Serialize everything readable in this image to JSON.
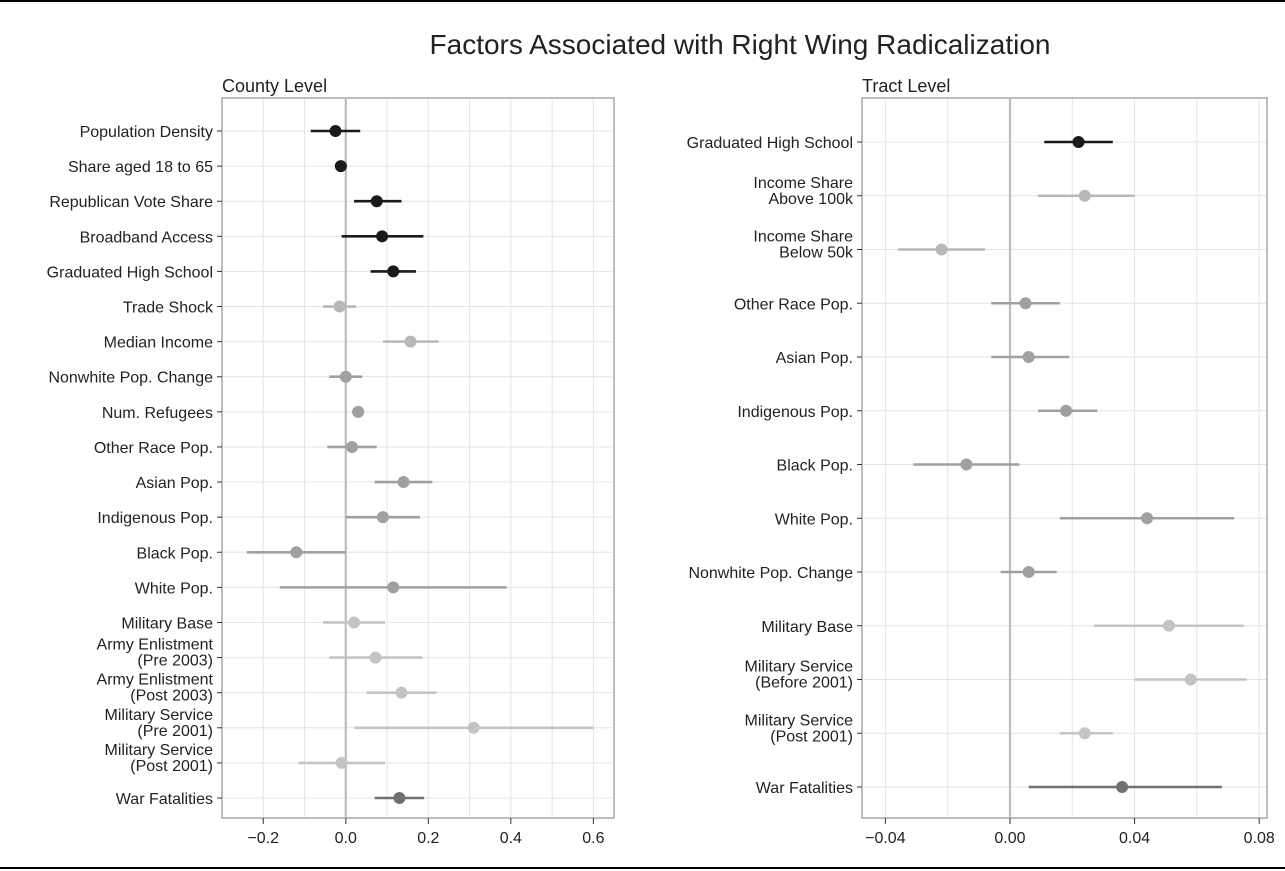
{
  "figure": {
    "title": "Factors Associated with Right Wing Radicalization"
  },
  "chart_data": [
    {
      "type": "scatter",
      "subtitle": "County Level",
      "xlim": [
        -0.3,
        0.65
      ],
      "xticks": [
        -0.2,
        0.0,
        0.2,
        0.4,
        0.6
      ],
      "tick_labels": [
        "−0.2",
        "0.0",
        "0.2",
        "0.4",
        "0.6"
      ],
      "zero_line": 0,
      "grid": true,
      "points": [
        {
          "label": [
            "Population Density"
          ],
          "est": -0.025,
          "lo": -0.085,
          "hi": 0.035,
          "color": "#1a1a1a"
        },
        {
          "label": [
            "Share aged 18 to 65"
          ],
          "est": -0.012,
          "lo": -0.022,
          "hi": -0.003,
          "color": "#1a1a1a"
        },
        {
          "label": [
            "Republican Vote Share"
          ],
          "est": 0.075,
          "lo": 0.02,
          "hi": 0.135,
          "color": "#1a1a1a"
        },
        {
          "label": [
            "Broadband Access"
          ],
          "est": 0.088,
          "lo": -0.01,
          "hi": 0.188,
          "color": "#1a1a1a"
        },
        {
          "label": [
            "Graduated High School"
          ],
          "est": 0.115,
          "lo": 0.06,
          "hi": 0.17,
          "color": "#1a1a1a"
        },
        {
          "label": [
            "Trade Shock"
          ],
          "est": -0.015,
          "lo": -0.055,
          "hi": 0.025,
          "color": "#b8b8b8"
        },
        {
          "label": [
            "Median Income"
          ],
          "est": 0.157,
          "lo": 0.09,
          "hi": 0.225,
          "color": "#b8b8b8"
        },
        {
          "label": [
            "Nonwhite Pop. Change"
          ],
          "est": 0.0,
          "lo": -0.04,
          "hi": 0.04,
          "color": "#a0a0a0"
        },
        {
          "label": [
            "Num. Refugees"
          ],
          "est": 0.03,
          "lo": 0.015,
          "hi": 0.045,
          "color": "#a0a0a0"
        },
        {
          "label": [
            "Other Race Pop."
          ],
          "est": 0.015,
          "lo": -0.045,
          "hi": 0.075,
          "color": "#a0a0a0"
        },
        {
          "label": [
            "Asian Pop."
          ],
          "est": 0.14,
          "lo": 0.07,
          "hi": 0.21,
          "color": "#a0a0a0"
        },
        {
          "label": [
            "Indigenous Pop."
          ],
          "est": 0.09,
          "lo": 0.0,
          "hi": 0.18,
          "color": "#a0a0a0"
        },
        {
          "label": [
            "Black Pop."
          ],
          "est": -0.12,
          "lo": -0.24,
          "hi": 0.0,
          "color": "#a0a0a0"
        },
        {
          "label": [
            "White Pop."
          ],
          "est": 0.115,
          "lo": -0.16,
          "hi": 0.39,
          "color": "#a0a0a0"
        },
        {
          "label": [
            "Military Base"
          ],
          "est": 0.02,
          "lo": -0.055,
          "hi": 0.095,
          "color": "#c4c4c4"
        },
        {
          "label": [
            "Army Enlistment",
            "(Pre 2003)"
          ],
          "est": 0.072,
          "lo": -0.04,
          "hi": 0.185,
          "color": "#c4c4c4"
        },
        {
          "label": [
            "Army Enlistment",
            "(Post 2003)"
          ],
          "est": 0.135,
          "lo": 0.05,
          "hi": 0.22,
          "color": "#c4c4c4"
        },
        {
          "label": [
            "Military Service",
            "(Pre 2001)"
          ],
          "est": 0.31,
          "lo": 0.02,
          "hi": 0.6,
          "color": "#c4c4c4"
        },
        {
          "label": [
            "Military Service",
            "(Post 2001)"
          ],
          "est": -0.01,
          "lo": -0.115,
          "hi": 0.095,
          "color": "#c4c4c4"
        },
        {
          "label": [
            "War Fatalities"
          ],
          "est": 0.13,
          "lo": 0.07,
          "hi": 0.19,
          "color": "#707070"
        }
      ]
    },
    {
      "type": "scatter",
      "subtitle": "Tract Level",
      "xlim": [
        -0.0475,
        0.0825
      ],
      "xticks": [
        -0.04,
        0.0,
        0.04,
        0.08
      ],
      "tick_labels": [
        "−0.04",
        "0.00",
        "0.04",
        "0.08"
      ],
      "zero_line": 0,
      "grid": true,
      "points": [
        {
          "label": [
            "Graduated High School"
          ],
          "est": 0.022,
          "lo": 0.011,
          "hi": 0.033,
          "color": "#1a1a1a"
        },
        {
          "label": [
            "Income Share",
            "Above 100k"
          ],
          "est": 0.024,
          "lo": 0.009,
          "hi": 0.04,
          "color": "#b8b8b8"
        },
        {
          "label": [
            "Income Share",
            "Below 50k"
          ],
          "est": -0.022,
          "lo": -0.036,
          "hi": -0.008,
          "color": "#b8b8b8"
        },
        {
          "label": [
            "Other Race Pop."
          ],
          "est": 0.005,
          "lo": -0.006,
          "hi": 0.016,
          "color": "#a0a0a0"
        },
        {
          "label": [
            "Asian Pop."
          ],
          "est": 0.006,
          "lo": -0.006,
          "hi": 0.019,
          "color": "#a0a0a0"
        },
        {
          "label": [
            "Indigenous Pop."
          ],
          "est": 0.018,
          "lo": 0.009,
          "hi": 0.028,
          "color": "#a0a0a0"
        },
        {
          "label": [
            "Black Pop."
          ],
          "est": -0.014,
          "lo": -0.031,
          "hi": 0.003,
          "color": "#a0a0a0"
        },
        {
          "label": [
            "White Pop."
          ],
          "est": 0.044,
          "lo": 0.016,
          "hi": 0.072,
          "color": "#a0a0a0"
        },
        {
          "label": [
            "Nonwhite Pop. Change"
          ],
          "est": 0.006,
          "lo": -0.003,
          "hi": 0.015,
          "color": "#a0a0a0"
        },
        {
          "label": [
            "Military Base"
          ],
          "est": 0.051,
          "lo": 0.027,
          "hi": 0.075,
          "color": "#c4c4c4"
        },
        {
          "label": [
            "Military Service",
            "(Before 2001)"
          ],
          "est": 0.058,
          "lo": 0.04,
          "hi": 0.076,
          "color": "#c4c4c4"
        },
        {
          "label": [
            "Military Service",
            "(Post 2001)"
          ],
          "est": 0.024,
          "lo": 0.016,
          "hi": 0.033,
          "color": "#c4c4c4"
        },
        {
          "label": [
            "War Fatalities"
          ],
          "est": 0.036,
          "lo": 0.006,
          "hi": 0.068,
          "color": "#707070"
        }
      ]
    }
  ]
}
